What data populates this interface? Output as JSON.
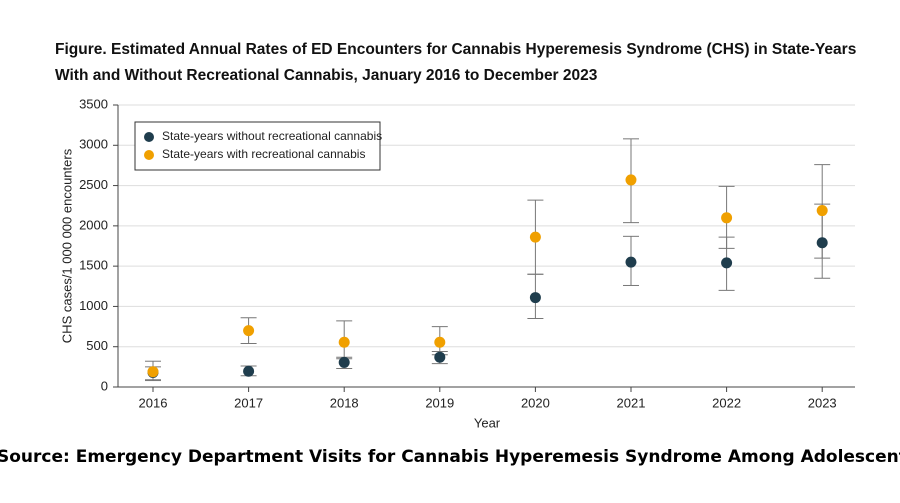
{
  "chart_data": {
    "type": "scatter",
    "title": [
      "Figure.  Estimated Annual Rates of ED Encounters for Cannabis Hyperemesis Syndrome (CHS) in State-Years",
      "With and Without Recreational Cannabis, January 2016 to December 2023"
    ],
    "x_label": "Year",
    "y_label": "CHS cases/1 000 000 encounters",
    "categories": [
      "2016",
      "2017",
      "2018",
      "2019",
      "2020",
      "2021",
      "2022",
      "2023"
    ],
    "series": [
      {
        "name": "State-years without recreational cannabis",
        "color": "#1f3d4d",
        "values": [
          180,
          195,
          305,
          370,
          1110,
          1550,
          1540,
          1790
        ],
        "lower": [
          90,
          140,
          230,
          290,
          850,
          1260,
          1200,
          1350
        ],
        "upper": [
          250,
          260,
          370,
          440,
          1400,
          1870,
          1860,
          2270
        ]
      },
      {
        "name": "State-years with recreational cannabis",
        "color": "#f0a000",
        "values": [
          190,
          700,
          555,
          555,
          1860,
          2570,
          2100,
          2190
        ],
        "lower": [
          80,
          540,
          350,
          400,
          1400,
          2040,
          1720,
          1600
        ],
        "upper": [
          320,
          860,
          820,
          750,
          2320,
          3080,
          2490,
          2760
        ]
      }
    ],
    "ylim": [
      0,
      3500
    ],
    "yticks": [
      0,
      500,
      1000,
      1500,
      2000,
      2500,
      3000,
      3500
    ],
    "grid": true,
    "legend": "upper-left",
    "source": "Source: Emergency Department Visits for Cannabis Hyperemesis Syndrome Among Adolescents"
  }
}
